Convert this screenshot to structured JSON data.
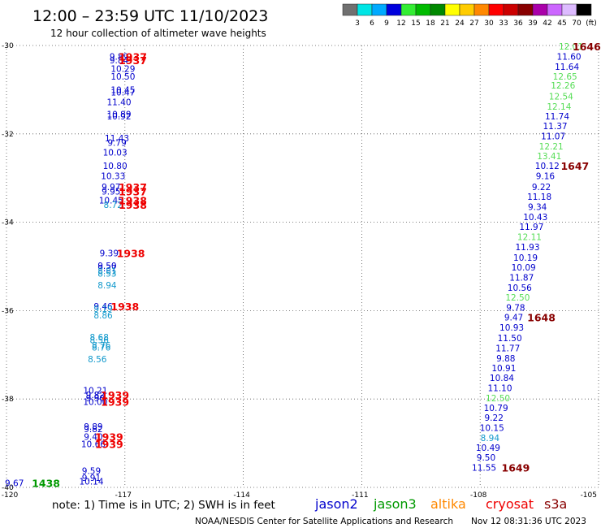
{
  "header": {
    "title": "12:00 – 23:59 UTC 11/10/2023",
    "subtitle": "12 hour collection of altimeter wave heights"
  },
  "colorbar": {
    "colors": [
      "#707070",
      "#00e5e5",
      "#00aaff",
      "#0000dd",
      "#33ee33",
      "#00bb00",
      "#008800",
      "#ffff00",
      "#ffcc00",
      "#ff8800",
      "#ff0000",
      "#cc0000",
      "#880000",
      "#aa00aa",
      "#cc66ff",
      "#ddbbff",
      "#000000"
    ],
    "labels": [
      "3",
      "6",
      "9",
      "12",
      "15",
      "18",
      "21",
      "24",
      "27",
      "30",
      "33",
      "36",
      "39",
      "42",
      "45",
      "70",
      "(ft)"
    ]
  },
  "axes": {
    "x_ticks": [
      "-120",
      "-117",
      "-114",
      "-111",
      "-108",
      "-105"
    ],
    "y_ticks": [
      "-30",
      "-32",
      "-34",
      "-36",
      "-38",
      "-40"
    ]
  },
  "footer": {
    "note": "note: 1) Time is in UTC; 2) SWH is in feet",
    "legend": [
      {
        "name": "jason2",
        "color": "#0000cc"
      },
      {
        "name": "jason3",
        "color": "#009900"
      },
      {
        "name": "altika",
        "color": "#ff8800"
      },
      {
        "name": "cryosat",
        "color": "#ee0000"
      },
      {
        "name": "s3a",
        "color": "#880000"
      }
    ],
    "credit": "NOAA/NESDIS Center for Satellite Applications and Research",
    "timestamp": "Nov 12 08:31:36 UTC 2023"
  },
  "chart_data": {
    "type": "scatter",
    "title": "12:00 – 23:59 UTC 11/10/2023",
    "subtitle": "12 hour collection of altimeter wave heights",
    "xlim": [
      -120,
      -105
    ],
    "ylim": [
      -40,
      -30
    ],
    "units": "ft",
    "grid": true,
    "points": [
      {
        "lon": -117.15,
        "lat": -30.25,
        "v": "9.89",
        "c": "#0000cc"
      },
      {
        "lon": -117.15,
        "lat": -30.33,
        "v": "9.84",
        "c": "#0000cc"
      },
      {
        "lon": -117.05,
        "lat": -30.52,
        "v": "10.29",
        "c": "#0000cc"
      },
      {
        "lon": -117.05,
        "lat": -30.7,
        "v": "10.50",
        "c": "#0000cc"
      },
      {
        "lon": -117.05,
        "lat": -31.0,
        "v": "10.45",
        "c": "#0000cc"
      },
      {
        "lon": -117.05,
        "lat": -31.06,
        "v": "10.47",
        "c": "#0000cc"
      },
      {
        "lon": -117.15,
        "lat": -31.28,
        "v": "11.40",
        "c": "#0000cc"
      },
      {
        "lon": -117.15,
        "lat": -31.55,
        "v": "10.89",
        "c": "#0000cc"
      },
      {
        "lon": -117.15,
        "lat": -31.6,
        "v": "10.92",
        "c": "#0000cc"
      },
      {
        "lon": -117.2,
        "lat": -32.1,
        "v": "11.43",
        "c": "#0000cc"
      },
      {
        "lon": -117.2,
        "lat": -32.2,
        "v": "9.79",
        "c": "#0000cc"
      },
      {
        "lon": -117.25,
        "lat": -32.42,
        "v": "10.03",
        "c": "#0000cc"
      },
      {
        "lon": -117.25,
        "lat": -32.72,
        "v": "10.80",
        "c": "#0000cc"
      },
      {
        "lon": -117.3,
        "lat": -32.95,
        "v": "10.33",
        "c": "#0000cc"
      },
      {
        "lon": -117.35,
        "lat": -33.2,
        "v": "9.97",
        "c": "#0000cc"
      },
      {
        "lon": -117.35,
        "lat": -33.3,
        "v": "9.95",
        "c": "#0000cc"
      },
      {
        "lon": -117.35,
        "lat": -33.5,
        "v": "10.45",
        "c": "#0000cc"
      },
      {
        "lon": -117.3,
        "lat": -33.6,
        "v": "8.72",
        "c": "#1199cc"
      },
      {
        "lon": -117.4,
        "lat": -34.7,
        "v": "9.39",
        "c": "#0000cc"
      },
      {
        "lon": -117.45,
        "lat": -34.98,
        "v": "9.50",
        "c": "#0000cc"
      },
      {
        "lon": -117.45,
        "lat": -35.04,
        "v": "9.37",
        "c": "#0000cc"
      },
      {
        "lon": -117.45,
        "lat": -35.1,
        "v": "8.81",
        "c": "#1199cc"
      },
      {
        "lon": -117.45,
        "lat": -35.16,
        "v": "8.53",
        "c": "#1199cc"
      },
      {
        "lon": -117.45,
        "lat": -35.42,
        "v": "8.94",
        "c": "#1199cc"
      },
      {
        "lon": -117.55,
        "lat": -35.9,
        "v": "9.46",
        "c": "#0000cc"
      },
      {
        "lon": -117.55,
        "lat": -35.96,
        "v": "9.19",
        "c": "#1199cc"
      },
      {
        "lon": -117.55,
        "lat": -36.1,
        "v": "8.86",
        "c": "#1199cc"
      },
      {
        "lon": -117.65,
        "lat": -36.6,
        "v": "8.68",
        "c": "#1199cc"
      },
      {
        "lon": -117.65,
        "lat": -36.66,
        "v": "8.56",
        "c": "#1199cc"
      },
      {
        "lon": -117.6,
        "lat": -36.78,
        "v": "8.76",
        "c": "#1199cc"
      },
      {
        "lon": -117.6,
        "lat": -36.83,
        "v": "8.76",
        "c": "#1199cc"
      },
      {
        "lon": -117.7,
        "lat": -37.1,
        "v": "8.56",
        "c": "#1199cc"
      },
      {
        "lon": -117.75,
        "lat": -37.8,
        "v": "10.21",
        "c": "#0000cc"
      },
      {
        "lon": -117.75,
        "lat": -37.9,
        "v": "9.82",
        "c": "#0000cc"
      },
      {
        "lon": -117.75,
        "lat": -37.98,
        "v": "9.90",
        "c": "#0000cc"
      },
      {
        "lon": -117.75,
        "lat": -38.06,
        "v": "10.00",
        "c": "#0000cc"
      },
      {
        "lon": -117.8,
        "lat": -38.62,
        "v": "9.89",
        "c": "#0000cc"
      },
      {
        "lon": -117.8,
        "lat": -38.68,
        "v": "9.82",
        "c": "#0000cc"
      },
      {
        "lon": -117.8,
        "lat": -38.85,
        "v": "9.40",
        "c": "#0000cc"
      },
      {
        "lon": -117.8,
        "lat": -39.02,
        "v": "10.66",
        "c": "#0000cc"
      },
      {
        "lon": -117.85,
        "lat": -39.62,
        "v": "9.59",
        "c": "#0000cc"
      },
      {
        "lon": -117.85,
        "lat": -39.78,
        "v": "9.91",
        "c": "#0000cc"
      },
      {
        "lon": -117.85,
        "lat": -39.86,
        "v": "10.14",
        "c": "#0000cc"
      },
      {
        "lon": -119.8,
        "lat": -39.9,
        "v": "9.67",
        "c": "#0000cc"
      },
      {
        "lon": -105.7,
        "lat": -30.02,
        "v": "12.01",
        "c": "#55dd55"
      },
      {
        "lon": -105.75,
        "lat": -30.25,
        "v": "11.60",
        "c": "#0000cc"
      },
      {
        "lon": -105.8,
        "lat": -30.48,
        "v": "11.64",
        "c": "#0000cc"
      },
      {
        "lon": -105.85,
        "lat": -30.7,
        "v": "12.65",
        "c": "#55dd55"
      },
      {
        "lon": -105.9,
        "lat": -30.9,
        "v": "12.26",
        "c": "#55dd55"
      },
      {
        "lon": -105.95,
        "lat": -31.15,
        "v": "12.54",
        "c": "#55dd55"
      },
      {
        "lon": -106.0,
        "lat": -31.38,
        "v": "12.14",
        "c": "#55dd55"
      },
      {
        "lon": -106.05,
        "lat": -31.6,
        "v": "11.74",
        "c": "#0000cc"
      },
      {
        "lon": -106.1,
        "lat": -31.82,
        "v": "11.37",
        "c": "#0000cc"
      },
      {
        "lon": -106.15,
        "lat": -32.05,
        "v": "11.07",
        "c": "#0000cc"
      },
      {
        "lon": -106.2,
        "lat": -32.28,
        "v": "12.21",
        "c": "#55dd55"
      },
      {
        "lon": -106.25,
        "lat": -32.5,
        "v": "13.41",
        "c": "#55dd55"
      },
      {
        "lon": -106.3,
        "lat": -32.72,
        "v": "10.12",
        "c": "#0000cc"
      },
      {
        "lon": -106.35,
        "lat": -32.95,
        "v": "9.16",
        "c": "#0000cc"
      },
      {
        "lon": -106.45,
        "lat": -33.2,
        "v": "9.22",
        "c": "#0000cc"
      },
      {
        "lon": -106.5,
        "lat": -33.42,
        "v": "11.18",
        "c": "#0000cc"
      },
      {
        "lon": -106.55,
        "lat": -33.65,
        "v": "9.34",
        "c": "#0000cc"
      },
      {
        "lon": -106.6,
        "lat": -33.88,
        "v": "10.43",
        "c": "#0000cc"
      },
      {
        "lon": -106.7,
        "lat": -34.1,
        "v": "11.97",
        "c": "#0000cc"
      },
      {
        "lon": -106.75,
        "lat": -34.33,
        "v": "12.11",
        "c": "#55dd55"
      },
      {
        "lon": -106.8,
        "lat": -34.56,
        "v": "11.93",
        "c": "#0000cc"
      },
      {
        "lon": -106.85,
        "lat": -34.8,
        "v": "10.19",
        "c": "#0000cc"
      },
      {
        "lon": -106.9,
        "lat": -35.02,
        "v": "10.09",
        "c": "#0000cc"
      },
      {
        "lon": -106.95,
        "lat": -35.25,
        "v": "11.87",
        "c": "#0000cc"
      },
      {
        "lon": -107.0,
        "lat": -35.48,
        "v": "10.56",
        "c": "#0000cc"
      },
      {
        "lon": -107.05,
        "lat": -35.7,
        "v": "12.50",
        "c": "#55dd55"
      },
      {
        "lon": -107.1,
        "lat": -35.93,
        "v": "9.78",
        "c": "#0000cc"
      },
      {
        "lon": -107.15,
        "lat": -36.15,
        "v": "9.47",
        "c": "#0000cc"
      },
      {
        "lon": -107.2,
        "lat": -36.38,
        "v": "10.93",
        "c": "#0000cc"
      },
      {
        "lon": -107.25,
        "lat": -36.62,
        "v": "11.50",
        "c": "#0000cc"
      },
      {
        "lon": -107.3,
        "lat": -36.85,
        "v": "11.77",
        "c": "#0000cc"
      },
      {
        "lon": -107.35,
        "lat": -37.08,
        "v": "9.88",
        "c": "#0000cc"
      },
      {
        "lon": -107.4,
        "lat": -37.3,
        "v": "10.91",
        "c": "#0000cc"
      },
      {
        "lon": -107.45,
        "lat": -37.52,
        "v": "10.84",
        "c": "#0000cc"
      },
      {
        "lon": -107.5,
        "lat": -37.75,
        "v": "11.10",
        "c": "#0000cc"
      },
      {
        "lon": -107.55,
        "lat": -37.98,
        "v": "12.50",
        "c": "#55dd55"
      },
      {
        "lon": -107.6,
        "lat": -38.2,
        "v": "10.79",
        "c": "#0000cc"
      },
      {
        "lon": -107.65,
        "lat": -38.42,
        "v": "9.22",
        "c": "#0000cc"
      },
      {
        "lon": -107.7,
        "lat": -38.65,
        "v": "10.15",
        "c": "#0000cc"
      },
      {
        "lon": -107.75,
        "lat": -38.88,
        "v": "8.94",
        "c": "#1199cc"
      },
      {
        "lon": -107.8,
        "lat": -39.1,
        "v": "10.49",
        "c": "#0000cc"
      },
      {
        "lon": -107.85,
        "lat": -39.32,
        "v": "9.50",
        "c": "#0000cc"
      },
      {
        "lon": -107.9,
        "lat": -39.55,
        "v": "11.55",
        "c": "#0000cc"
      }
    ],
    "time_labels": [
      {
        "lon": -116.8,
        "lat": -30.25,
        "t": "1937",
        "c": "#ee0000"
      },
      {
        "lon": -116.8,
        "lat": -30.33,
        "t": "1937",
        "c": "#ee0000"
      },
      {
        "lon": -116.8,
        "lat": -33.2,
        "t": "1937",
        "c": "#ee0000"
      },
      {
        "lon": -116.8,
        "lat": -33.3,
        "t": "1937",
        "c": "#ee0000"
      },
      {
        "lon": -116.8,
        "lat": -33.5,
        "t": "1938",
        "c": "#ee0000"
      },
      {
        "lon": -116.8,
        "lat": -33.6,
        "t": "1938",
        "c": "#ee0000"
      },
      {
        "lon": -116.85,
        "lat": -34.7,
        "t": "1938",
        "c": "#ee0000"
      },
      {
        "lon": -117.0,
        "lat": -35.9,
        "t": "1938",
        "c": "#ee0000"
      },
      {
        "lon": -117.25,
        "lat": -37.9,
        "t": "1939",
        "c": "#ee0000"
      },
      {
        "lon": -117.25,
        "lat": -38.06,
        "t": "1939",
        "c": "#ee0000"
      },
      {
        "lon": -117.4,
        "lat": -38.85,
        "t": "1939",
        "c": "#ee0000"
      },
      {
        "lon": -117.4,
        "lat": -39.02,
        "t": "1939",
        "c": "#ee0000"
      },
      {
        "lon": -119.0,
        "lat": -39.9,
        "t": "1438",
        "c": "#009900"
      },
      {
        "lon": -105.3,
        "lat": -30.02,
        "t": "1646",
        "c": "#880000"
      },
      {
        "lon": -105.6,
        "lat": -32.72,
        "t": "1647",
        "c": "#880000"
      },
      {
        "lon": -106.45,
        "lat": -36.15,
        "t": "1648",
        "c": "#880000"
      },
      {
        "lon": -107.1,
        "lat": -39.55,
        "t": "1649",
        "c": "#880000"
      }
    ]
  }
}
